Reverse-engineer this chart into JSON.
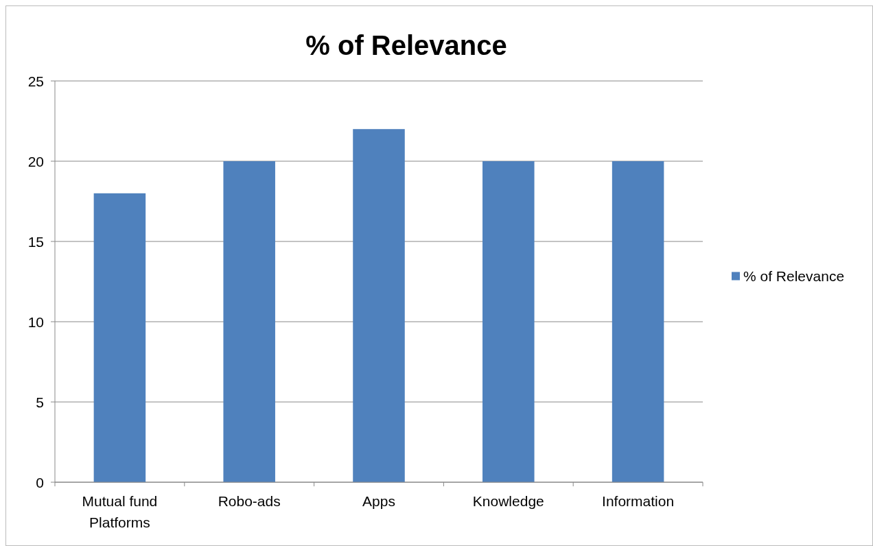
{
  "chart_data": {
    "type": "bar",
    "title": "% of Relevance",
    "categories": [
      "Mutual fund Platforms",
      "Robo-ads",
      "Apps",
      "Knowledge",
      "Information"
    ],
    "series": [
      {
        "name": "% of Relevance",
        "color": "#4f81bd",
        "values": [
          18,
          20,
          22,
          20,
          20
        ]
      }
    ],
    "ylim": [
      0,
      25
    ],
    "yticks": [
      0,
      5,
      10,
      15,
      20,
      25
    ],
    "grid": "y",
    "legend": "right"
  }
}
